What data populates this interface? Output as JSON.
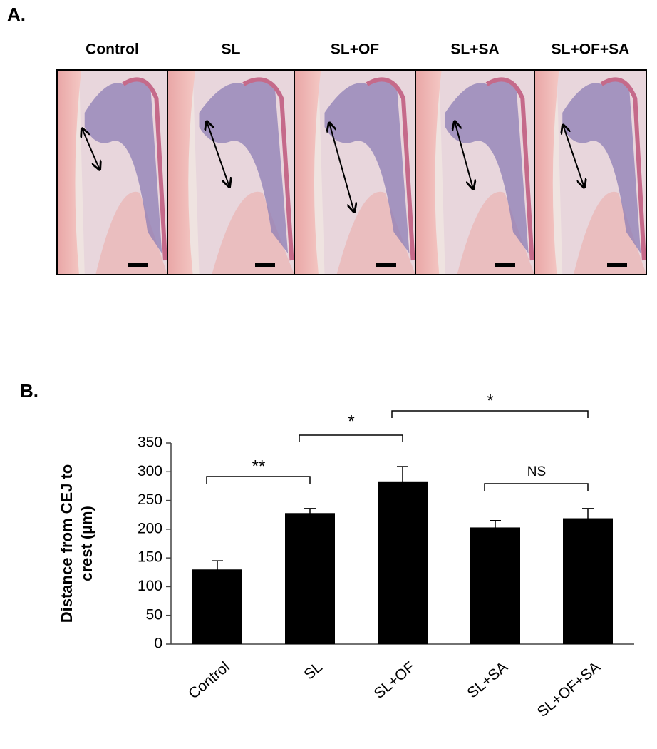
{
  "panel_a": {
    "label": "A.",
    "titles": [
      "Control",
      "SL",
      "SL+OF",
      "SL+SA",
      "SL+OF+SA"
    ]
  },
  "chart_data": {
    "type": "bar",
    "panel_label": "B.",
    "ylabel": [
      "Distance from CEJ to",
      "crest (µm)"
    ],
    "categories": [
      "Control",
      "SL",
      "SL+OF",
      "SL+SA",
      "SL+OF+SA"
    ],
    "values": [
      130,
      228,
      282,
      203,
      219
    ],
    "errors": [
      15,
      8,
      27,
      12,
      17
    ],
    "color": "#000000",
    "ylim": [
      0,
      350
    ],
    "yticks": [
      0,
      50,
      100,
      150,
      200,
      250,
      300,
      350
    ],
    "annotations": [
      "**",
      "*",
      "*",
      "NS"
    ]
  }
}
